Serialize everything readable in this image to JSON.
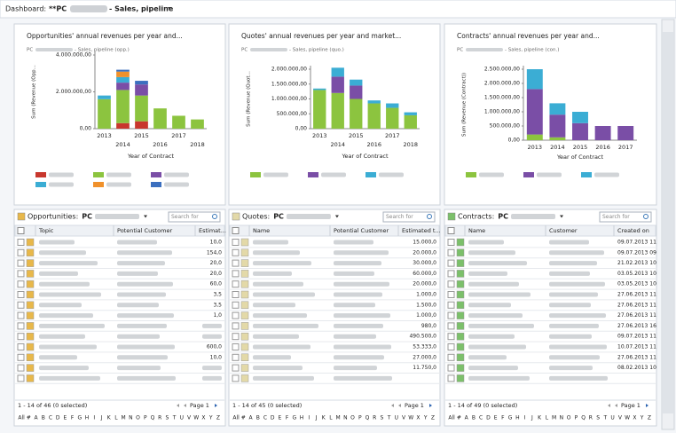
{
  "header": {
    "label": "Dashboard:",
    "prefix": "**PC",
    "title": "- Sales, pipeline"
  },
  "chart_data": [
    {
      "type": "bar",
      "stacked": true,
      "title": "Opportunities' annual revenues per year and...",
      "subtitle_prefix": "PC",
      "subtitle": "- Sales, pipeline (opp.)",
      "y_label": "Sum (Revenue (Opp...",
      "x_label": "Year of Contract",
      "categories": [
        "2013",
        "2014",
        "2015",
        "2016",
        "2017",
        "2018"
      ],
      "ylim": [
        0,
        4000000
      ],
      "yticks": [
        {
          "value": 0,
          "label": "0,00"
        },
        {
          "value": 2000000,
          "label": "2.000.000,00"
        },
        {
          "value": 4000000,
          "label": "4.000.000,00"
        }
      ],
      "series": [
        {
          "color": "#c8372d",
          "values": [
            0,
            300000,
            400000,
            0,
            0,
            0
          ]
        },
        {
          "color": "#8cc43f",
          "values": [
            1600000,
            1800000,
            1400000,
            1100000,
            700000,
            500000
          ]
        },
        {
          "color": "#7a4ea6",
          "values": [
            0,
            400000,
            600000,
            0,
            0,
            0
          ]
        },
        {
          "color": "#3badd4",
          "values": [
            200000,
            300000,
            0,
            0,
            0,
            0
          ]
        },
        {
          "color": "#f0912b",
          "values": [
            0,
            300000,
            0,
            0,
            0,
            0
          ]
        },
        {
          "color": "#3b6fbf",
          "values": [
            0,
            100000,
            200000,
            0,
            0,
            0
          ]
        }
      ]
    },
    {
      "type": "bar",
      "stacked": true,
      "title": "Quotes' annual revenues per year and market...",
      "subtitle_prefix": "PC",
      "subtitle": "- Sales, pipeline (quo.)",
      "y_label": "Sum (Revenue (Quot...",
      "x_label": "Year of Contract",
      "categories": [
        "2013",
        "2014",
        "2015",
        "2016",
        "2017",
        "2018"
      ],
      "ylim": [
        0,
        2000000
      ],
      "yticks": [
        {
          "value": 0,
          "label": "0,00"
        },
        {
          "value": 500000,
          "label": "500.000,00"
        },
        {
          "value": 1000000,
          "label": "1.000.000,00"
        },
        {
          "value": 1500000,
          "label": "1.500.000,00"
        },
        {
          "value": 2000000,
          "label": "2.000.000,00"
        }
      ],
      "series": [
        {
          "color": "#8cc43f",
          "values": [
            1300000,
            1200000,
            1000000,
            850000,
            700000,
            450000
          ]
        },
        {
          "color": "#7a4ea6",
          "values": [
            0,
            550000,
            450000,
            0,
            0,
            0
          ]
        },
        {
          "color": "#3badd4",
          "values": [
            50000,
            300000,
            200000,
            100000,
            150000,
            100000
          ]
        }
      ]
    },
    {
      "type": "bar",
      "stacked": true,
      "title": "Contracts' annual revenues per year and...",
      "subtitle_prefix": "PC",
      "subtitle": "- Sales, pipeline (con.)",
      "y_label": "Sum (Revenue (Contract))",
      "x_label": "Year of Contract",
      "categories": [
        "2013",
        "2014",
        "2015",
        "2016",
        "2017"
      ],
      "ylim": [
        0,
        2500000
      ],
      "yticks": [
        {
          "value": 0,
          "label": "0,00"
        },
        {
          "value": 500000,
          "label": "500.000,00"
        },
        {
          "value": 1000000,
          "label": "1.000.000,00"
        },
        {
          "value": 1500000,
          "label": "1.500.000,00"
        },
        {
          "value": 2000000,
          "label": "2.000.000,00"
        },
        {
          "value": 2500000,
          "label": "2.500.000,00"
        }
      ],
      "series": [
        {
          "color": "#8cc43f",
          "values": [
            200000,
            100000,
            0,
            0,
            0
          ]
        },
        {
          "color": "#7a4ea6",
          "values": [
            1600000,
            800000,
            600000,
            500000,
            500000
          ]
        },
        {
          "color": "#3badd4",
          "values": [
            700000,
            400000,
            400000,
            0,
            0
          ]
        }
      ]
    }
  ],
  "lists": [
    {
      "title": "Opportunities:",
      "view": "PC",
      "search": "Search for",
      "columns": [
        "Topic",
        "Potential Customer",
        "Estimat..."
      ],
      "values": [
        "10,0",
        "154,0",
        "20,0",
        "20,0",
        "60,0",
        "3,5",
        "3,5",
        "1,0",
        null,
        null,
        "600,0",
        "10,0",
        null,
        null
      ],
      "status": "1 - 14 of 46 (0 selected)",
      "page": "Page 1"
    },
    {
      "title": "Quotes:",
      "view": "PC",
      "search": "Search for",
      "columns": [
        "Name",
        "Potential Customer",
        "Estimated t..."
      ],
      "values": [
        "15.000,0",
        "20.000,0",
        "30.000,0",
        "60.000,0",
        "20.000,0",
        "1.000,0",
        "1.500,0",
        "1.000,0",
        "980,0",
        "490.500,0",
        "53.333,0",
        "27.000,0",
        "11.750,0"
      ],
      "status": "1 - 14 of 45 (0 selected)",
      "page": "Page 1"
    },
    {
      "title": "Contracts:",
      "view": "PC",
      "search": "Search for",
      "columns": [
        "Name",
        "Customer",
        "Created on"
      ],
      "values": [
        "09.07.2013 11",
        "09.07.2013 09",
        "21.02.2013 10",
        "03.05.2013 10",
        "03.05.2013 10",
        "27.06.2013 11",
        "27.06.2013 11",
        "27.06.2013 11",
        "27.06.2013 16",
        "09.07.2013 11",
        "10.07.2013 11",
        "27.06.2013 11",
        "08.02.2013 10"
      ],
      "status": "1 - 14 of 49 (0 selected)",
      "page": "Page 1"
    }
  ],
  "alphabet": [
    "All",
    "#",
    "A",
    "B",
    "C",
    "D",
    "E",
    "F",
    "G",
    "H",
    "I",
    "J",
    "K",
    "L",
    "M",
    "N",
    "O",
    "P",
    "Q",
    "R",
    "S",
    "T",
    "U",
    "V",
    "W",
    "X",
    "Y",
    "Z"
  ]
}
